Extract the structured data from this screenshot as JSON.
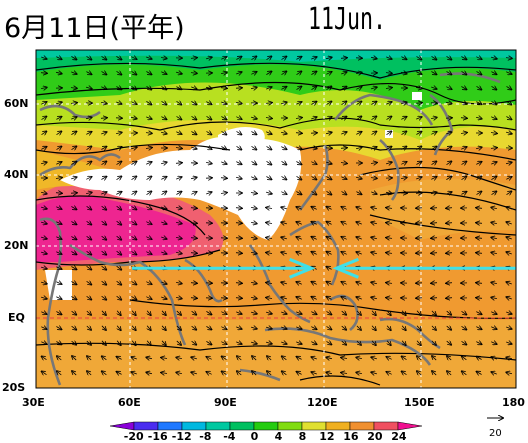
{
  "title": "6月11日(平年)",
  "date_label": "11Jun.",
  "lat_labels": [
    "60N",
    "40N",
    "20N",
    "EQ",
    "20S"
  ],
  "lon_labels": [
    "30E",
    "60E",
    "90E",
    "120E",
    "150E",
    "180"
  ],
  "colorbar": {
    "ticks": [
      "-20",
      "-16",
      "-12",
      "-8",
      "-4",
      "0",
      "4",
      "8",
      "12",
      "16",
      "20",
      "24"
    ],
    "colors": [
      "#8a00d8",
      "#4a2cf0",
      "#1f78ff",
      "#00b8e0",
      "#00c8a0",
      "#00c060",
      "#24cc10",
      "#80dc10",
      "#e0e030",
      "#f0b020",
      "#f09030",
      "#f05060",
      "#f01090"
    ]
  },
  "reference_vector": "20",
  "annotation": {
    "arrow_color": "#40e0e8",
    "left_arrow_from_lon": 60,
    "left_arrow_to_lon": 118,
    "left_arrow_lat": 14,
    "right_arrow_from_lon": 180,
    "right_arrow_to_lon": 122,
    "right_arrow_lat": 14
  }
}
